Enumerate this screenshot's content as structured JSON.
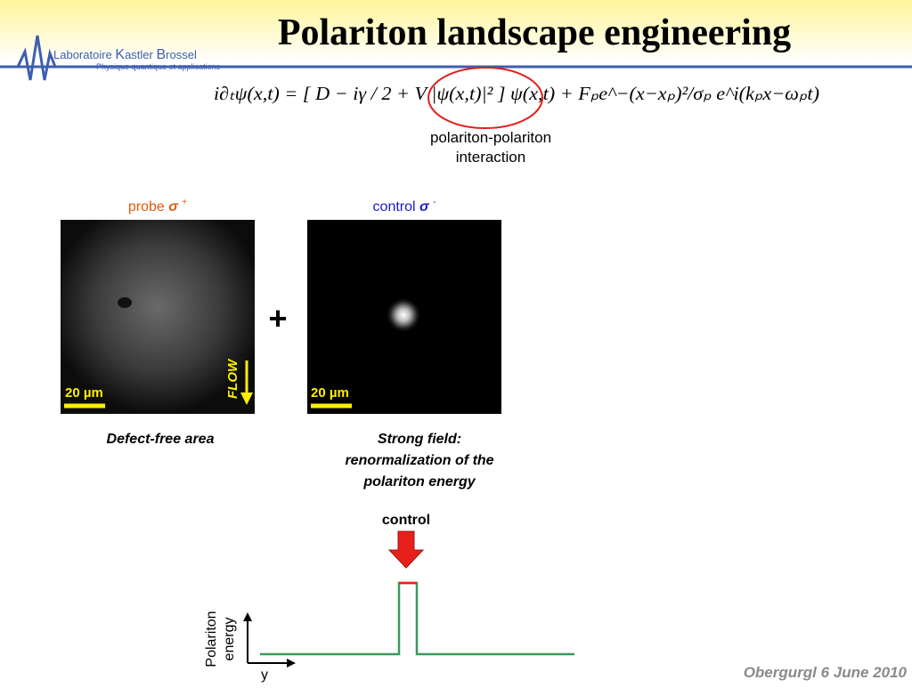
{
  "header": {
    "title": "Polariton landscape engineering",
    "logo": {
      "name_parts": [
        "Laboratoire",
        "K",
        "astler",
        "B",
        "rossel"
      ],
      "tagline": "Physique quantique et applications"
    }
  },
  "equation": {
    "text": "i∂ₜψ(x,t) = [ D − iγ / 2 + V |ψ(x,t)|² ] ψ(x,t) + Fₚe^−(x−xₚ)²/σₚ e^i(kₚx−ωₚt)",
    "annotation": [
      "polariton-polariton",
      "interaction"
    ]
  },
  "panels": [
    {
      "label": "probe",
      "symbol": "σ",
      "sign": "+",
      "scale": "20 µm",
      "flow": "FLOW",
      "caption": [
        "Defect-free area"
      ]
    },
    {
      "label": "control",
      "symbol": "σ",
      "sign": "-",
      "scale": "20 µm",
      "caption": [
        "Strong field:",
        "renormalization of the",
        "polariton energy"
      ]
    }
  ],
  "plus": "+",
  "diagram": {
    "arrow_label": "control",
    "y_label": [
      "Polariton",
      "energy"
    ],
    "x_label": "y"
  },
  "footer": "Obergurgl 6 June 2010"
}
